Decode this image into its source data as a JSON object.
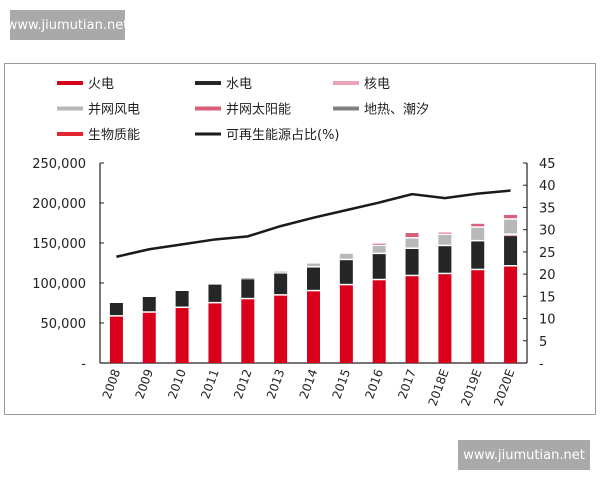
{
  "watermarks": [
    "www.jiumutian.net",
    "www.jiumutian.net"
  ],
  "chart_data": {
    "type": "bar",
    "stacked": true,
    "categories": [
      "2008",
      "2009",
      "2010",
      "2011",
      "2012",
      "2013",
      "2014",
      "2015",
      "2016",
      "2017",
      "2018E",
      "2019E",
      "2020E"
    ],
    "series": [
      {
        "name": "火电",
        "color": "#d9001b",
        "values": [
          58000,
          62800,
          68700,
          74500,
          79600,
          84200,
          89600,
          97100,
          103400,
          108500,
          111000,
          116000,
          120600
        ]
      },
      {
        "name": "水电",
        "color": "#262626",
        "values": [
          17000,
          19700,
          21300,
          23500,
          25000,
          27600,
          29700,
          31400,
          32700,
          34000,
          35000,
          36000,
          38000
        ]
      },
      {
        "name": "核电",
        "color": "#e8a5b5",
        "values": [
          0,
          0,
          0,
          0,
          0,
          0,
          0,
          0,
          0,
          0,
          0,
          0,
          1500
        ]
      },
      {
        "name": "并网风电",
        "color": "#b8b8b8",
        "values": [
          0,
          0,
          0,
          0,
          1500,
          2500,
          5000,
          8000,
          10000,
          13000,
          14000,
          17000,
          19000
        ]
      },
      {
        "name": "并网太阳能",
        "color": "#d9607a",
        "values": [
          0,
          0,
          0,
          0,
          0,
          0,
          0,
          0,
          3000,
          7000,
          3000,
          5000,
          6000
        ]
      },
      {
        "name": "地热、潮汐",
        "color": "#7f7f7f",
        "values": [
          0,
          0,
          0,
          0,
          0,
          0,
          0,
          0,
          0,
          0,
          0,
          0,
          0
        ]
      },
      {
        "name": "生物质能",
        "color": "#e3262e",
        "values": [
          0,
          0,
          0,
          0,
          0,
          0,
          0,
          0,
          0,
          0,
          0,
          0,
          0
        ]
      },
      {
        "name": "可再生能源占比(%)",
        "type": "line",
        "axis": "right",
        "color": "#1a1a1a",
        "values": [
          23.9,
          25.6,
          26.7,
          27.8,
          28.5,
          30.8,
          32.7,
          34.4,
          36.1,
          38.0,
          37.1,
          38.1,
          38.8
        ]
      }
    ],
    "ylim": [
      0,
      250000
    ],
    "yticks": [
      "-",
      "50,000",
      "100,000",
      "150,000",
      "200,000",
      "250,000"
    ],
    "y2lim": [
      0,
      45
    ],
    "y2ticks": [
      "-",
      "5",
      "10",
      "15",
      "20",
      "25",
      "30",
      "35",
      "40",
      "45"
    ],
    "legend": "top",
    "grid": false
  }
}
